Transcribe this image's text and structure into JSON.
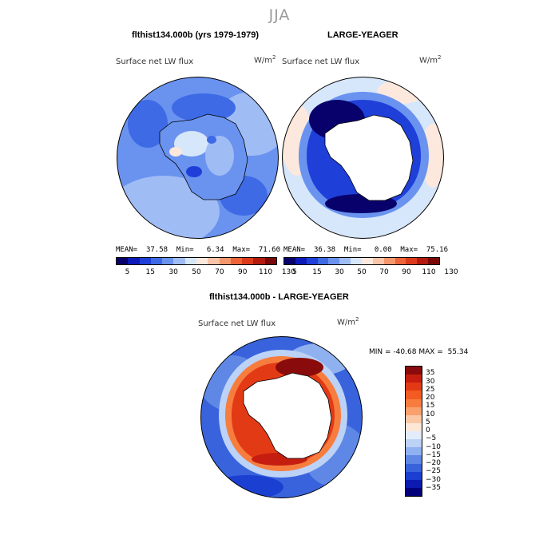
{
  "page": {
    "title": "JJA"
  },
  "panels": {
    "left": {
      "title": "flthist134.000b (yrs 1979-1979)",
      "variable": "Surface net LW flux",
      "units_base": "W/m",
      "units_exp": "2",
      "stats": {
        "mean_label": "MEAN=",
        "mean": "37.58",
        "min_label": "Min=",
        "min": "6.34",
        "max_label": "Max=",
        "max": "71.60"
      }
    },
    "right": {
      "title": "LARGE-YEAGER",
      "variable": "Surface net LW flux",
      "units_base": "W/m",
      "units_exp": "2",
      "stats": {
        "mean_label": "MEAN=",
        "mean": "36.38",
        "min_label": "Min=",
        "min": "0.00",
        "max_label": "Max=",
        "max": "75.16"
      }
    },
    "diff": {
      "title": "flthist134.000b - LARGE-YEAGER",
      "variable": "Surface net LW flux",
      "units_base": "W/m",
      "units_exp": "2",
      "range": {
        "min_label": "MIN =",
        "min": "-40.68",
        "max_label": "MAX =",
        "max": "55.34"
      }
    }
  },
  "colorbars": {
    "abs": {
      "colors": [
        "#08006b",
        "#0b1ab8",
        "#1f3fd9",
        "#3e6ae6",
        "#6a93ef",
        "#9fbcf5",
        "#d6e6fb",
        "#fce8dc",
        "#f9c4a7",
        "#f4976d",
        "#ec6437",
        "#dc3a1b",
        "#b51a0f",
        "#7a0808"
      ],
      "ticks": [
        "5",
        "15",
        "30",
        "50",
        "70",
        "90",
        "110",
        "130"
      ]
    },
    "diff": {
      "colors": [
        "#8a0b0b",
        "#c51e10",
        "#e33a16",
        "#f25b21",
        "#f77d3e",
        "#f9a06c",
        "#fbc8a6",
        "#fde8d8",
        "#e2ecfb",
        "#bcd2f6",
        "#8fb1ef",
        "#5f88e6",
        "#3863dc",
        "#1b3fd0",
        "#0b1ab0",
        "#04007a"
      ],
      "ticks": [
        "35",
        "30",
        "25",
        "20",
        "15",
        "10",
        "5",
        "0",
        "−5",
        "−10",
        "−15",
        "−20",
        "−25",
        "−30",
        "−35"
      ]
    }
  }
}
